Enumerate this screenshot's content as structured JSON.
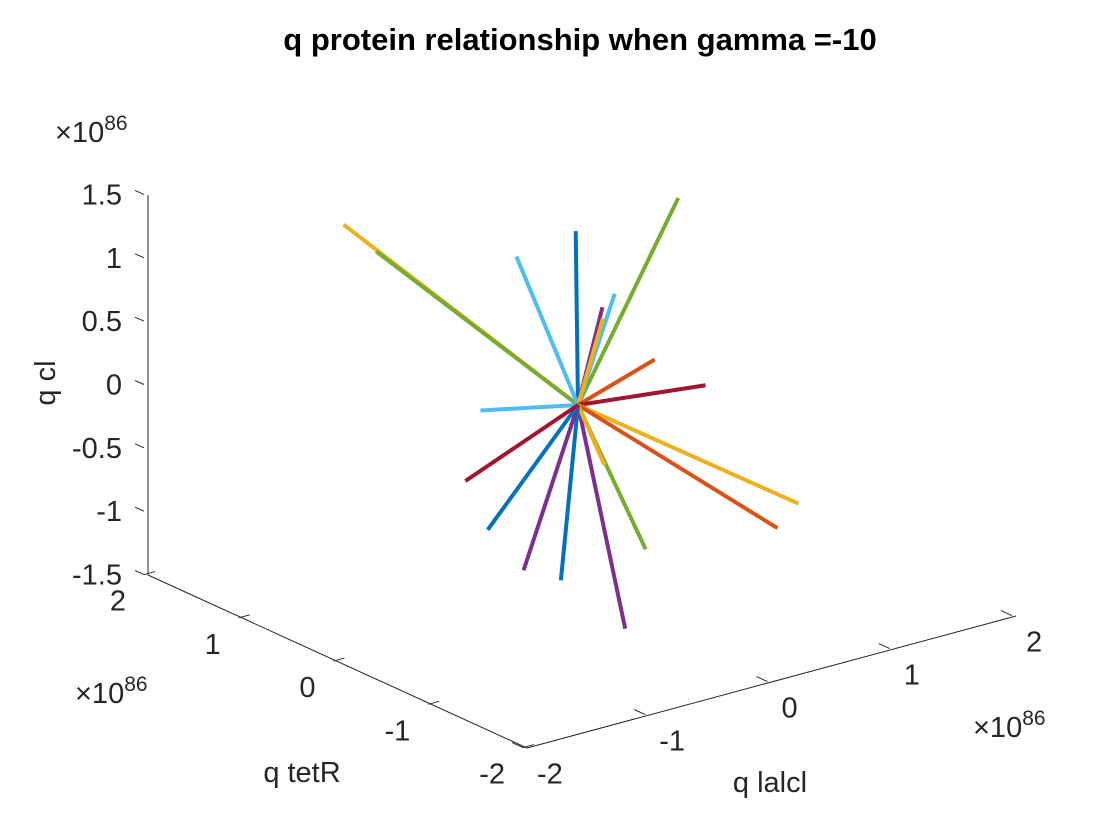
{
  "chart_data": {
    "type": "line",
    "title": "q protein relationship when gamma =-10",
    "xlabel": "q lalcl",
    "ylabel": "q tetR",
    "zlabel": "q cl",
    "exponent_prefix": "×10",
    "exponent_power": "86",
    "xlim": [
      -2,
      2
    ],
    "ylim": [
      -2,
      2
    ],
    "zlim": [
      -1.5,
      1.5
    ],
    "x_ticks": [
      "-2",
      "-1",
      "0",
      "1",
      "2"
    ],
    "y_ticks": [
      "2",
      "1",
      "0",
      "-1",
      "-2"
    ],
    "z_ticks": [
      "1.5",
      "1",
      "0.5",
      "0",
      "-0.5",
      "-1",
      "-1.5"
    ],
    "grid": false,
    "legend": "none",
    "origin": [
      0,
      0,
      0
    ],
    "series": [
      {
        "color": "#EDB120",
        "end": [
          -0.6,
          1.7,
          1.0
        ]
      },
      {
        "color": "#77AC30",
        "end": [
          -0.45,
          1.55,
          0.8
        ]
      },
      {
        "color": "#0072BD",
        "end": [
          0.02,
          0.05,
          1.35
        ]
      },
      {
        "color": "#4DBEEE",
        "end": [
          0.0,
          0.65,
          0.95
        ]
      },
      {
        "color": "#77AC30",
        "end": [
          0.82,
          0.0,
          1.42
        ]
      },
      {
        "color": "#4DBEEE",
        "end": [
          0.3,
          0.0,
          0.8
        ]
      },
      {
        "color": "#7E2F8E",
        "end": [
          0.2,
          0.0,
          0.72
        ]
      },
      {
        "color": "#EDB120",
        "end": [
          0.22,
          0.02,
          0.62
        ]
      },
      {
        "color": "#D95319",
        "end": [
          0.55,
          -0.1,
          0.25
        ]
      },
      {
        "color": "#A2142F",
        "end": [
          0.85,
          -0.25,
          0.02
        ]
      },
      {
        "color": "#EDB120",
        "end": [
          0.95,
          -1.1,
          -0.65
        ]
      },
      {
        "color": "#D95319",
        "end": [
          0.78,
          -1.1,
          -0.8
        ]
      },
      {
        "color": "#77AC30",
        "end": [
          0.05,
          -0.65,
          -0.93
        ]
      },
      {
        "color": "#7E2F8E",
        "end": [
          -0.35,
          -0.95,
          -1.35
        ]
      },
      {
        "color": "#EDB120",
        "end": [
          0.1,
          -0.15,
          -0.45
        ]
      },
      {
        "color": "#0072BD",
        "end": [
          -0.45,
          -0.4,
          -1.13
        ]
      },
      {
        "color": "#7E2F8E",
        "end": [
          -0.6,
          -0.2,
          -1.08
        ]
      },
      {
        "color": "#0072BD",
        "end": [
          -0.7,
          0.05,
          -0.82
        ]
      },
      {
        "color": "#4DBEEE",
        "end": [
          -0.45,
          0.45,
          -0.08
        ]
      },
      {
        "color": "#A2142F",
        "end": [
          -0.65,
          0.35,
          -0.55
        ]
      }
    ]
  }
}
